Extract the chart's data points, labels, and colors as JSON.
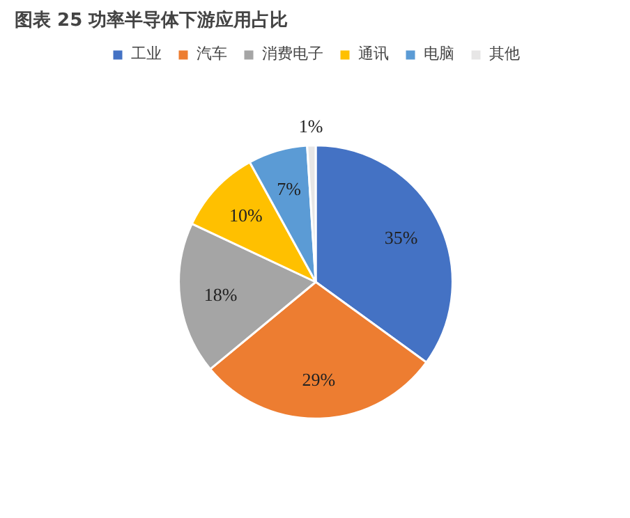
{
  "chart_data": {
    "type": "pie",
    "title": "图表 25 功率半导体下游应用占比",
    "categories": [
      "工业",
      "汽车",
      "消费电子",
      "通讯",
      "电脑",
      "其他"
    ],
    "values": [
      35,
      29,
      18,
      10,
      7,
      1
    ],
    "colors": [
      "#4472c4",
      "#ed7d31",
      "#a5a5a5",
      "#ffc000",
      "#5b9bd5",
      "#e7e6e6"
    ],
    "value_labels": [
      "35%",
      "29%",
      "18%",
      "10%",
      "7%",
      "1%"
    ],
    "legend": "top"
  }
}
